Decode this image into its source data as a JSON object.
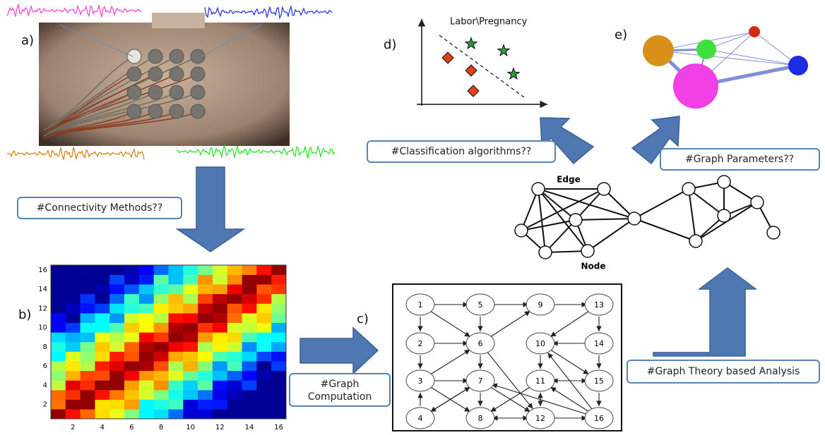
{
  "panels": {
    "a": "a)",
    "b": "b)",
    "c": "c)",
    "d": "d)",
    "e": "e)"
  },
  "boxes": {
    "connectivity": "#Connectivity Methods??",
    "graph_computation": [
      "#Graph",
      "Computation"
    ],
    "graph_theory": "#Graph Theory based Analysis",
    "graph_parameters": "#Graph Parameters??",
    "classification": "#Classification algorithms??"
  },
  "heatmap": {
    "xticks": [
      2,
      4,
      6,
      8,
      10,
      12,
      14,
      16
    ],
    "yticks": [
      2,
      4,
      6,
      8,
      10,
      12,
      14,
      16
    ]
  },
  "directed_graph": {
    "nodes": [
      "1",
      "2",
      "3",
      "4",
      "5",
      "6",
      "7",
      "8",
      "9",
      "10",
      "11",
      "12",
      "13",
      "14",
      "15",
      "16"
    ]
  },
  "classification_plot": {
    "title": "Labor\\Pregnancy"
  },
  "network": {
    "edge_label": "Edge",
    "node_label": "Node"
  }
}
